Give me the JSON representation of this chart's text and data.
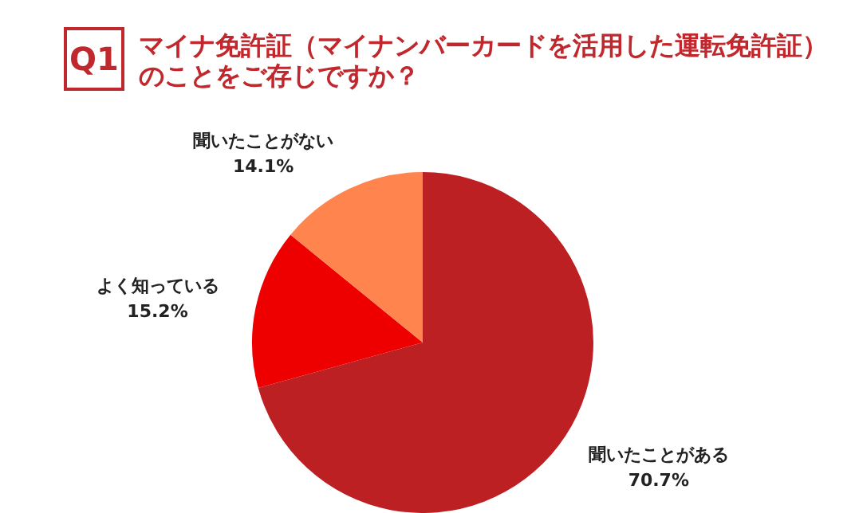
{
  "chart_data": {
    "type": "pie",
    "title": "マイナ免許証（マイナンバーカードを活用した運転免許証）のことをご存じですか？",
    "annotations": [
      "Q1"
    ],
    "categories": [
      "聞いたことがある",
      "よく知っている",
      "聞いたことがない"
    ],
    "values": [
      70.7,
      15.2,
      14.1
    ],
    "colors": [
      "#bc2022",
      "#ee0000",
      "#ff844d"
    ],
    "value_labels": [
      "70.7%",
      "15.2%",
      "14.1%"
    ],
    "legend": false
  }
}
